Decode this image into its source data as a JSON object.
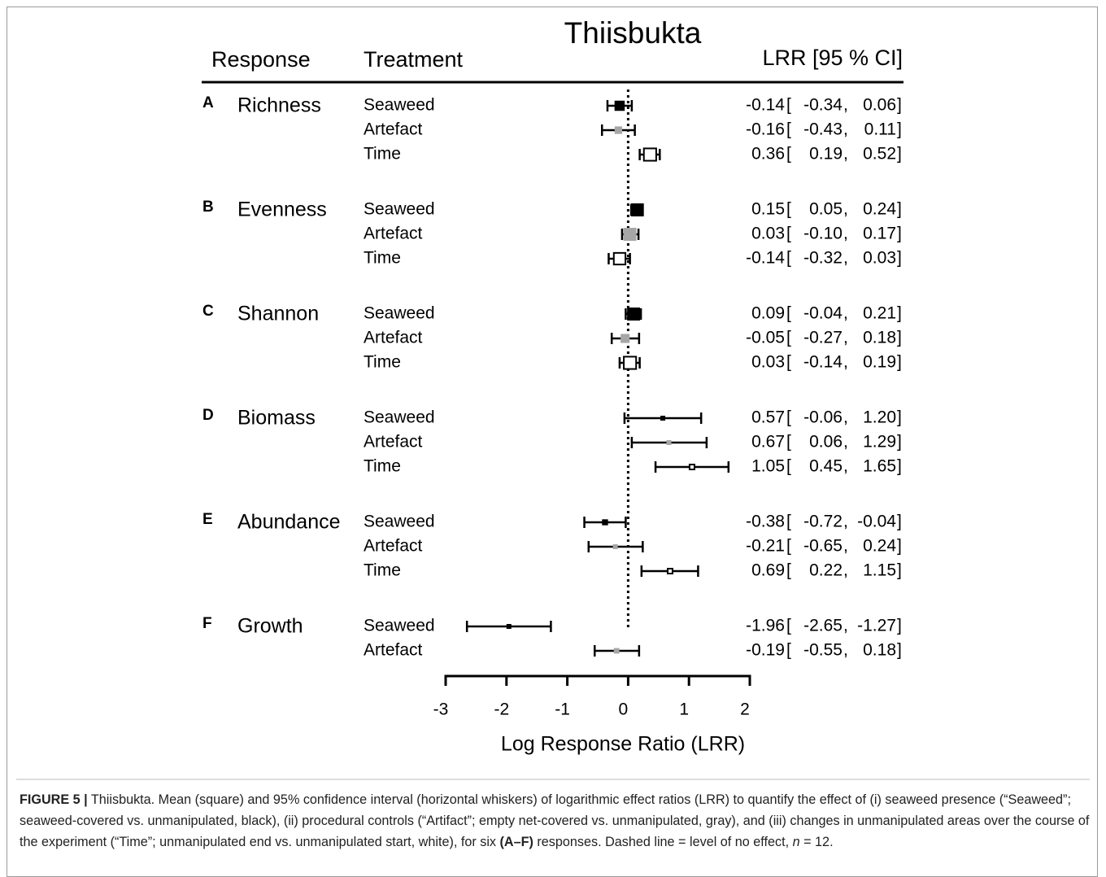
{
  "chart_data": {
    "type": "forest",
    "title": "Thiisbukta",
    "headers": {
      "response": "Response",
      "treatment": "Treatment",
      "estimate": "LRR [95 % CI]"
    },
    "x_label": "Log Response Ratio (LRR)",
    "xlim": [
      -3,
      2
    ],
    "xticks": [
      -3,
      -2,
      -1,
      0,
      1,
      2
    ],
    "reference_line": 0,
    "groups": [
      {
        "letter": "A",
        "name": "Richness",
        "rows": [
          {
            "treatment": "Seaweed",
            "color": "#000000",
            "values": [
              -0.14,
              -0.34,
              0.06
            ],
            "value_labels": [
              "-0.14",
              "-0.34",
              "0.06"
            ]
          },
          {
            "treatment": "Artefact",
            "color": "#a6a6a6",
            "values": [
              -0.16,
              -0.43,
              0.11
            ],
            "value_labels": [
              "-0.16",
              "-0.43",
              "0.11"
            ]
          },
          {
            "treatment": "Time",
            "color": "#ffffff",
            "values": [
              0.36,
              0.19,
              0.52
            ],
            "value_labels": [
              "0.36",
              "0.19",
              "0.52"
            ]
          }
        ]
      },
      {
        "letter": "B",
        "name": "Evenness",
        "rows": [
          {
            "treatment": "Seaweed",
            "color": "#000000",
            "values": [
              0.15,
              0.05,
              0.24
            ],
            "value_labels": [
              "0.15",
              "0.05",
              "0.24"
            ]
          },
          {
            "treatment": "Artefact",
            "color": "#a6a6a6",
            "values": [
              0.03,
              -0.1,
              0.17
            ],
            "value_labels": [
              "0.03",
              "-0.10",
              "0.17"
            ]
          },
          {
            "treatment": "Time",
            "color": "#ffffff",
            "values": [
              -0.14,
              -0.32,
              0.03
            ],
            "value_labels": [
              "-0.14",
              "-0.32",
              "0.03"
            ]
          }
        ]
      },
      {
        "letter": "C",
        "name": "Shannon",
        "rows": [
          {
            "treatment": "Seaweed",
            "color": "#000000",
            "values": [
              0.09,
              -0.04,
              0.21
            ],
            "value_labels": [
              "0.09",
              "-0.04",
              "0.21"
            ]
          },
          {
            "treatment": "Artefact",
            "color": "#a6a6a6",
            "values": [
              -0.05,
              -0.27,
              0.18
            ],
            "value_labels": [
              "-0.05",
              "-0.27",
              "0.18"
            ]
          },
          {
            "treatment": "Time",
            "color": "#ffffff",
            "values": [
              0.03,
              -0.14,
              0.19
            ],
            "value_labels": [
              "0.03",
              "-0.14",
              "0.19"
            ]
          }
        ]
      },
      {
        "letter": "D",
        "name": "Biomass",
        "rows": [
          {
            "treatment": "Seaweed",
            "color": "#000000",
            "values": [
              0.57,
              -0.06,
              1.2
            ],
            "value_labels": [
              "0.57",
              "-0.06",
              "1.20"
            ]
          },
          {
            "treatment": "Artefact",
            "color": "#a6a6a6",
            "values": [
              0.67,
              0.06,
              1.29
            ],
            "value_labels": [
              "0.67",
              "0.06",
              "1.29"
            ]
          },
          {
            "treatment": "Time",
            "color": "#ffffff",
            "values": [
              1.05,
              0.45,
              1.65
            ],
            "value_labels": [
              "1.05",
              "0.45",
              "1.65"
            ]
          }
        ]
      },
      {
        "letter": "E",
        "name": "Abundance",
        "rows": [
          {
            "treatment": "Seaweed",
            "color": "#000000",
            "values": [
              -0.38,
              -0.72,
              -0.04
            ],
            "value_labels": [
              "-0.38",
              "-0.72",
              "-0.04"
            ]
          },
          {
            "treatment": "Artefact",
            "color": "#a6a6a6",
            "values": [
              -0.21,
              -0.65,
              0.24
            ],
            "value_labels": [
              "-0.21",
              "-0.65",
              "0.24"
            ]
          },
          {
            "treatment": "Time",
            "color": "#ffffff",
            "values": [
              0.69,
              0.22,
              1.15
            ],
            "value_labels": [
              "0.69",
              "0.22",
              "1.15"
            ]
          }
        ]
      },
      {
        "letter": "F",
        "name": "Growth",
        "rows": [
          {
            "treatment": "Seaweed",
            "color": "#000000",
            "values": [
              -1.96,
              -2.65,
              -1.27
            ],
            "value_labels": [
              "-1.96",
              "-2.65",
              "-1.27"
            ]
          },
          {
            "treatment": "Artefact",
            "color": "#a6a6a6",
            "values": [
              -0.19,
              -0.55,
              0.18
            ],
            "value_labels": [
              "-0.19",
              "-0.55",
              "0.18"
            ]
          }
        ]
      }
    ]
  },
  "caption": {
    "label": "FIGURE 5 |",
    "text1": " Thiisbukta. Mean (square) and 95% confidence interval (horizontal whiskers) of logarithmic effect ratios (LRR) to quantify the effect of (i) seaweed presence (“Seaweed”; seaweed-covered vs. unmanipulated, black), (ii) procedural controls (“Artifact”; empty net-covered vs. unmanipulated, gray), and (iii) changes in unmanipulated areas over the course of the experiment (“Time”; unmanipulated end vs. unmanipulated start, white), for six ",
    "bold": "(A–F)",
    "text2": " responses. Dashed line = level of no effect, ",
    "italic": "n",
    "text3": " = 12."
  }
}
